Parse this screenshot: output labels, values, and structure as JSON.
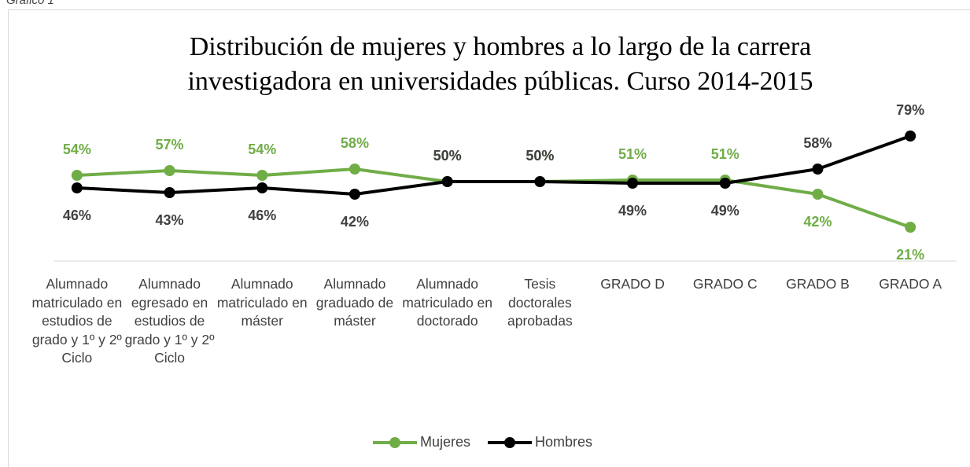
{
  "caption": "Gráfico 1",
  "chart_data": {
    "type": "line",
    "title": "Distribución de mujeres y hombres a lo largo de la carrera investigadora en universidades públicas. Curso 2014-2015",
    "categories": [
      "Alumnado matriculado en estudios de grado y 1º y 2º Ciclo",
      "Alumnado egresado en estudios de grado y 1º y 2º Ciclo",
      "Alumnado matriculado en máster",
      "Alumnado graduado de máster",
      "Alumnado matriculado en doctorado",
      "Tesis doctorales aprobadas",
      "GRADO D",
      "GRADO C",
      "GRADO B",
      "GRADO A"
    ],
    "series": [
      {
        "name": "Mujeres",
        "color": "#70ad47",
        "values": [
          54,
          57,
          54,
          58,
          50,
          50,
          51,
          51,
          42,
          21
        ],
        "value_labels": [
          "54%",
          "57%",
          "54%",
          "58%",
          "50%",
          "50%",
          "51%",
          "51%",
          "42%",
          "21%"
        ]
      },
      {
        "name": "Hombres",
        "color": "#000000",
        "values": [
          46,
          43,
          46,
          42,
          50,
          50,
          49,
          49,
          58,
          79
        ],
        "value_labels": [
          "46%",
          "43%",
          "46%",
          "42%",
          "50%",
          "50%",
          "49%",
          "49%",
          "58%",
          "79%"
        ]
      }
    ],
    "ylim": [
      0,
      100
    ],
    "grid": false,
    "legend": "bottom"
  }
}
